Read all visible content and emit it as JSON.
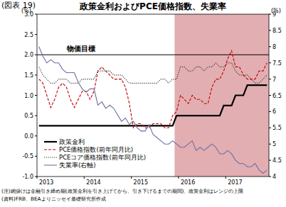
{
  "chart_data": {
    "type": "line",
    "label": "(図表 19)",
    "title": "政策金利およびPCE価格指数、失業率",
    "y_unit": "(%)",
    "y2_unit": "(%)",
    "categories": [
      "2013",
      null,
      null,
      null,
      null,
      null,
      null,
      null,
      null,
      null,
      null,
      null,
      "2014",
      null,
      null,
      null,
      null,
      null,
      null,
      null,
      null,
      null,
      null,
      null,
      "2015",
      null,
      null,
      null,
      null,
      null,
      null,
      null,
      null,
      null,
      null,
      null,
      "2016",
      null,
      null,
      null,
      null,
      null,
      null,
      null,
      null,
      null,
      null,
      null,
      "2017",
      null,
      null,
      null,
      null,
      null,
      null,
      null,
      null,
      null,
      null
    ],
    "series": [
      {
        "name": "政策金利",
        "color": "#000000",
        "line_style": "solid",
        "values": [
          0.25,
          0.25,
          0.25,
          0.25,
          0.25,
          0.25,
          0.25,
          0.25,
          0.25,
          0.25,
          0.25,
          0.25,
          0.25,
          0.25,
          0.25,
          0.25,
          0.25,
          0.25,
          0.25,
          0.25,
          0.25,
          0.25,
          0.25,
          0.25,
          0.25,
          0.25,
          0.25,
          0.25,
          0.25,
          0.25,
          0.25,
          0.25,
          0.25,
          0.25,
          0.25,
          0.5,
          0.5,
          0.5,
          0.5,
          0.5,
          0.5,
          0.5,
          0.5,
          0.5,
          0.5,
          0.5,
          0.5,
          0.75,
          0.75,
          0.75,
          1.0,
          1.0,
          1.0,
          1.25,
          1.25,
          1.25,
          1.25,
          1.25,
          1.25
        ]
      },
      {
        "name": "PCE価格指数(前年同月比)",
        "color": "#c00000",
        "line_style": "dashed",
        "values": [
          1.4,
          1.3,
          1.0,
          0.7,
          0.9,
          1.2,
          1.3,
          1.2,
          0.9,
          0.7,
          0.9,
          1.1,
          1.1,
          0.9,
          1.1,
          1.6,
          1.7,
          1.6,
          1.5,
          1.4,
          1.4,
          1.4,
          1.2,
          0.8,
          0.2,
          0.3,
          0.3,
          0.2,
          0.2,
          0.3,
          0.3,
          0.3,
          0.2,
          0.2,
          0.5,
          0.6,
          1.0,
          0.9,
          0.8,
          1.0,
          0.9,
          0.9,
          0.8,
          0.8,
          1.2,
          1.4,
          1.4,
          1.6,
          1.9,
          2.1,
          1.7,
          1.7,
          1.5,
          1.4,
          1.4,
          1.4,
          1.6,
          1.6,
          1.8
        ]
      },
      {
        "name": "PCEコア価格指数(前年同月比)",
        "color": "#333333",
        "line_style": "dotted",
        "values": [
          1.7,
          1.5,
          1.4,
          1.3,
          1.3,
          1.4,
          1.4,
          1.4,
          1.3,
          1.3,
          1.3,
          1.4,
          1.4,
          1.4,
          1.4,
          1.6,
          1.6,
          1.6,
          1.6,
          1.5,
          1.5,
          1.5,
          1.4,
          1.3,
          1.3,
          1.3,
          1.3,
          1.3,
          1.3,
          1.3,
          1.3,
          1.4,
          1.4,
          1.3,
          1.4,
          1.4,
          1.7,
          1.7,
          1.6,
          1.6,
          1.7,
          1.7,
          1.6,
          1.7,
          1.7,
          1.8,
          1.7,
          1.7,
          1.8,
          1.8,
          1.6,
          1.5,
          1.5,
          1.5,
          1.4,
          1.3,
          1.3,
          1.4,
          1.5
        ]
      },
      {
        "name": "失業率(右軸)",
        "color": "#6e6e9e",
        "line_style": "solid",
        "axis": "y2",
        "values": [
          8.0,
          7.7,
          7.5,
          7.6,
          7.5,
          7.5,
          7.3,
          7.2,
          7.2,
          7.2,
          6.9,
          6.7,
          6.6,
          6.7,
          6.7,
          6.2,
          6.3,
          6.1,
          6.2,
          6.1,
          5.9,
          5.7,
          5.8,
          5.6,
          5.7,
          5.5,
          5.4,
          5.4,
          5.6,
          5.3,
          5.2,
          5.1,
          5.0,
          5.0,
          5.1,
          5.0,
          4.9,
          4.9,
          5.0,
          5.1,
          4.8,
          4.9,
          4.8,
          4.9,
          5.0,
          4.9,
          4.7,
          4.7,
          4.8,
          4.7,
          4.5,
          4.4,
          4.4,
          4.3,
          4.3,
          4.4,
          4.2,
          4.1,
          4.2
        ]
      }
    ],
    "ylim": [
      -1.0,
      3.0
    ],
    "yticks": [
      {
        "value": -1.0,
        "label": "-1.0"
      },
      -0.5,
      {
        "value": 0,
        "label": "0.0"
      },
      0.5,
      {
        "value": 1.0,
        "label": "1.0"
      },
      1.5,
      {
        "value": 2.0,
        "label": "2.0"
      },
      2.5,
      {
        "value": 3.0,
        "label": "3.0"
      }
    ],
    "y2lim": [
      4,
      9
    ],
    "y2ticks": [
      4,
      4.5,
      5,
      5.5,
      6,
      6.5,
      7,
      7.5,
      8,
      8.5,
      9
    ],
    "grid": false,
    "legend": "lower left",
    "shaded": {
      "from": 35,
      "to": 58,
      "color": "#e2aeb2"
    },
    "target": {
      "value": 2.0,
      "label": "物価目標"
    },
    "notes": [
      "(注)網掛けは金融引き締め期(政策金利を引き上げてから、引き下げるまでの期間)、政策金利はレンジの上限",
      "(資料)FRB、BEAよりニッセイ基礎研究所作成"
    ]
  }
}
